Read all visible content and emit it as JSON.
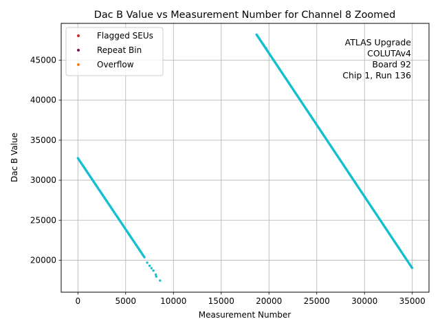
{
  "chart_data": {
    "type": "scatter",
    "title": "Dac B Value vs Measurement Number for Channel 8 Zoomed",
    "xlabel": "Measurement Number",
    "ylabel": "Dac B Value",
    "xlim": [
      -1750,
      36750
    ],
    "ylim": [
      16000,
      49600
    ],
    "xticks": [
      0,
      5000,
      10000,
      15000,
      20000,
      25000,
      30000,
      35000
    ],
    "yticks": [
      20000,
      25000,
      30000,
      35000,
      40000,
      45000
    ],
    "grid": true,
    "legend_position": "top-left",
    "legend": [
      {
        "label": "Flagged SEUs",
        "color": "#d62728"
      },
      {
        "label": "Repeat Bin",
        "color": "#7b1450"
      },
      {
        "label": "Overflow",
        "color": "#ff7f0e"
      }
    ],
    "annotation": [
      "ATLAS Upgrade",
      "COLUTAv4",
      "Board 92",
      "Chip 1, Run 136"
    ],
    "series": [
      {
        "name": "Dac B Value",
        "color": "#17becf",
        "segments": [
          {
            "x_start": 0,
            "x_end": 7000,
            "y_start": 32750,
            "y_end": 20300,
            "step": 60
          },
          {
            "x_start": 18700,
            "x_end": 35000,
            "y_start": 48200,
            "y_end": 19000,
            "step": 55
          }
        ],
        "points": [
          [
            7250,
            19700
          ],
          [
            7500,
            19300
          ],
          [
            7700,
            19000
          ],
          [
            7900,
            18700
          ],
          [
            8150,
            18200
          ],
          [
            8200,
            17950
          ],
          [
            8600,
            17450
          ],
          [
            19000,
            47700
          ],
          [
            19200,
            47300
          ],
          [
            19400,
            47000
          ],
          [
            19700,
            46500
          ]
        ]
      }
    ]
  }
}
